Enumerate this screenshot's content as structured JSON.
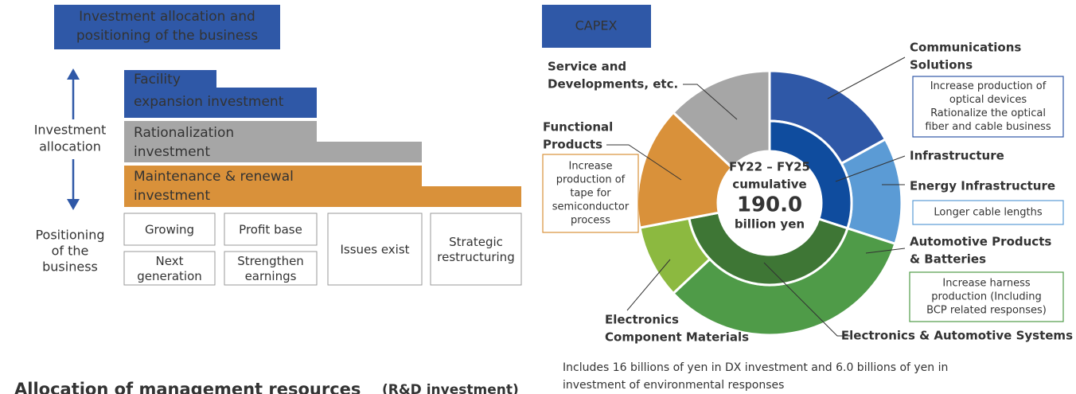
{
  "left": {
    "title": [
      "Investment allocation and",
      "positioning of the business"
    ],
    "axis_label": [
      "Investment",
      "allocation"
    ],
    "investments": [
      [
        "Facility",
        "expansion investment"
      ],
      [
        "Rationalization",
        "investment"
      ],
      [
        "Maintenance & renewal",
        "investment"
      ]
    ],
    "positioning_label": [
      "Positioning",
      "of the",
      "business"
    ],
    "positions": [
      [
        [
          "Growing"
        ],
        [
          "Next",
          "generation"
        ]
      ],
      [
        [
          "Profit base"
        ],
        [
          "Strengthen",
          "earnings"
        ]
      ],
      [
        [
          "Issues exist"
        ]
      ],
      [
        [
          "Strategic",
          "restructuring"
        ]
      ]
    ]
  },
  "capex": {
    "title": "CAPEX",
    "center": [
      "FY22 – FY25",
      "cumulative",
      "190.0",
      "billion yen"
    ],
    "groups": [
      {
        "name": [
          "Infrastructure"
        ],
        "color": "#0f4c9e",
        "parts": [
          {
            "name": [
              "Communications",
              "Solutions"
            ],
            "color": "#2f58a7",
            "value": 17,
            "note": [
              "Increase production of",
              "optical devices",
              "Rationalize the optical",
              "fiber and cable business"
            ]
          },
          {
            "name": [
              "Energy Infrastructure"
            ],
            "color": "#5b9bd5",
            "value": 13,
            "note": [
              "Longer cable lengths"
            ]
          }
        ]
      },
      {
        "name": [
          "Electronics & Automotive Systems"
        ],
        "color": "#3e7635",
        "parts": [
          {
            "name": [
              "Automotive Products",
              "& Batteries"
            ],
            "color": "#4f9b48",
            "value": 33,
            "note": [
              "Increase harness",
              "production (Including",
              "BCP related responses)"
            ]
          },
          {
            "name": [
              "Electronics",
              "Component Materials"
            ],
            "color": "#8cb940",
            "value": 9
          }
        ]
      },
      {
        "name": [
          "Functional",
          "Products"
        ],
        "color": "#d9913a",
        "value": 15,
        "note": [
          "Increase",
          "production of",
          "tape for",
          "semiconductor",
          "process"
        ]
      },
      {
        "name": [
          "Service and",
          "Developments, etc."
        ],
        "color": "#a6a6a6",
        "value": 13
      }
    ],
    "footnote": [
      "Includes 16 billions of yen in DX investment and 6.0 billions of yen in",
      "investment of environmental responses"
    ]
  },
  "next_section": [
    "Allocation of management resources",
    "(R&D investment)"
  ]
}
